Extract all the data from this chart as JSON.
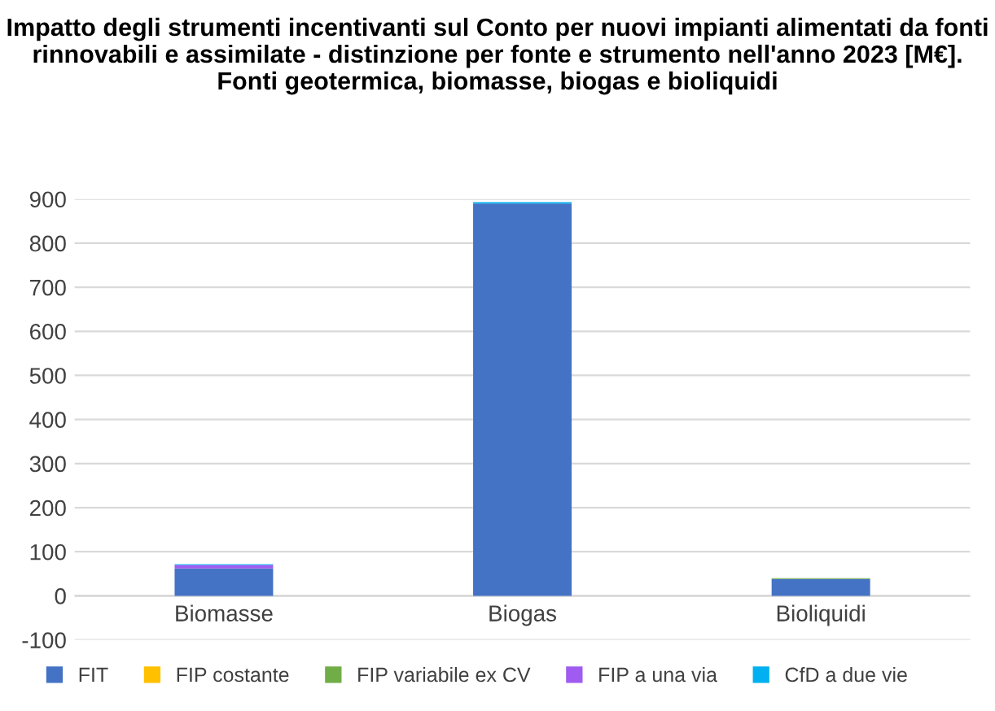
{
  "chart_data": {
    "type": "bar",
    "stacked": true,
    "title": "Impatto degli strumenti incentivanti sul Conto per nuovi impianti alimentati da fonti rinnovabili e assimilate - distinzione per fonte e strumento nell'anno 2023 [M€]. Fonti geotermica, biomasse, biogas e bioliquidi",
    "categories": [
      "Biomasse",
      "Biogas",
      "Bioliquidi"
    ],
    "series": [
      {
        "name": "FIT",
        "color": "#4472c4",
        "values": [
          62,
          890,
          38
        ]
      },
      {
        "name": "FIP costante",
        "color": "#ffc000",
        "values": [
          0,
          0,
          0
        ]
      },
      {
        "name": "FIP variabile ex CV",
        "color": "#70ad47",
        "values": [
          0,
          0,
          2
        ]
      },
      {
        "name": "FIP a una via",
        "color": "#a05cf0",
        "values": [
          8,
          0,
          0
        ]
      },
      {
        "name": "CfD a due vie",
        "color": "#00b0f0",
        "values": [
          2,
          3,
          0
        ]
      }
    ],
    "ylim": [
      -100,
      900
    ],
    "yticks": [
      -100,
      0,
      100,
      200,
      300,
      400,
      500,
      600,
      700,
      800,
      900
    ],
    "grid": "y",
    "legend": "bottom"
  }
}
